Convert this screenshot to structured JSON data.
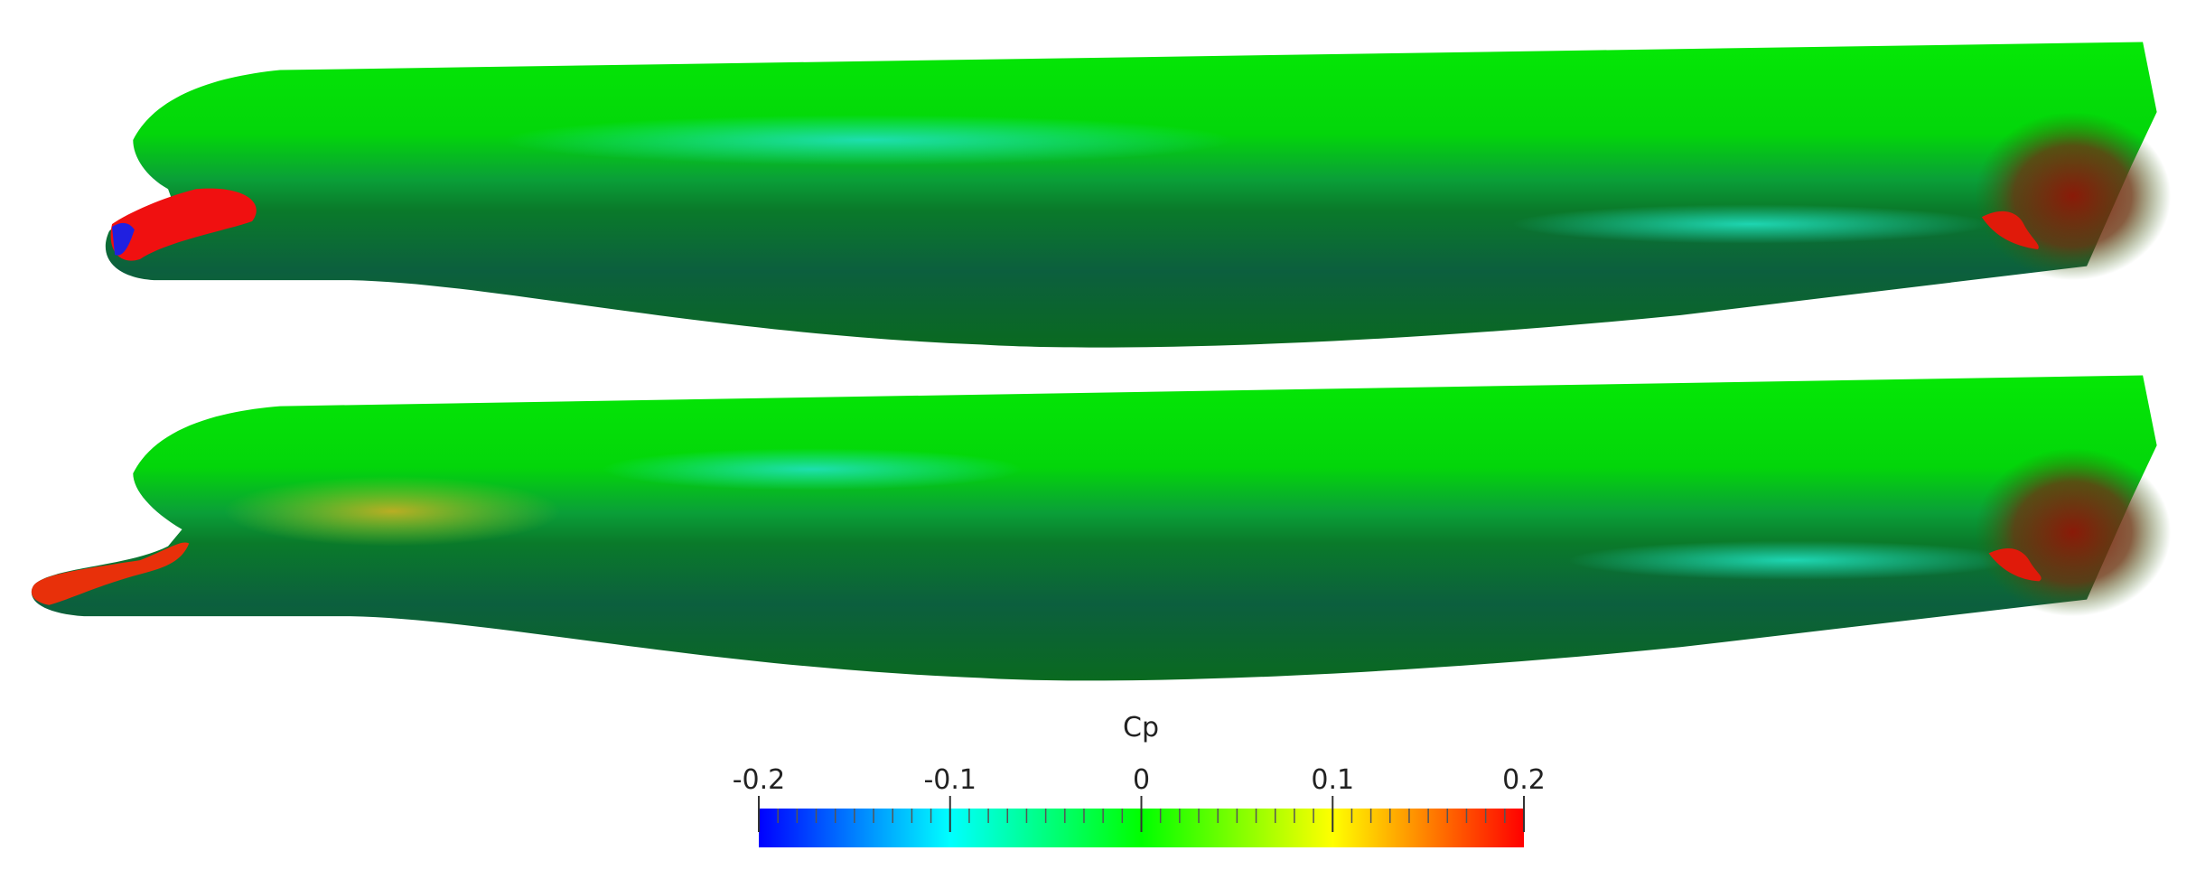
{
  "colorbar": {
    "label": "Cp",
    "range": [
      -0.2,
      0.2
    ],
    "ticks": [
      -0.2,
      -0.1,
      0,
      0.1,
      0.2
    ]
  }
}
